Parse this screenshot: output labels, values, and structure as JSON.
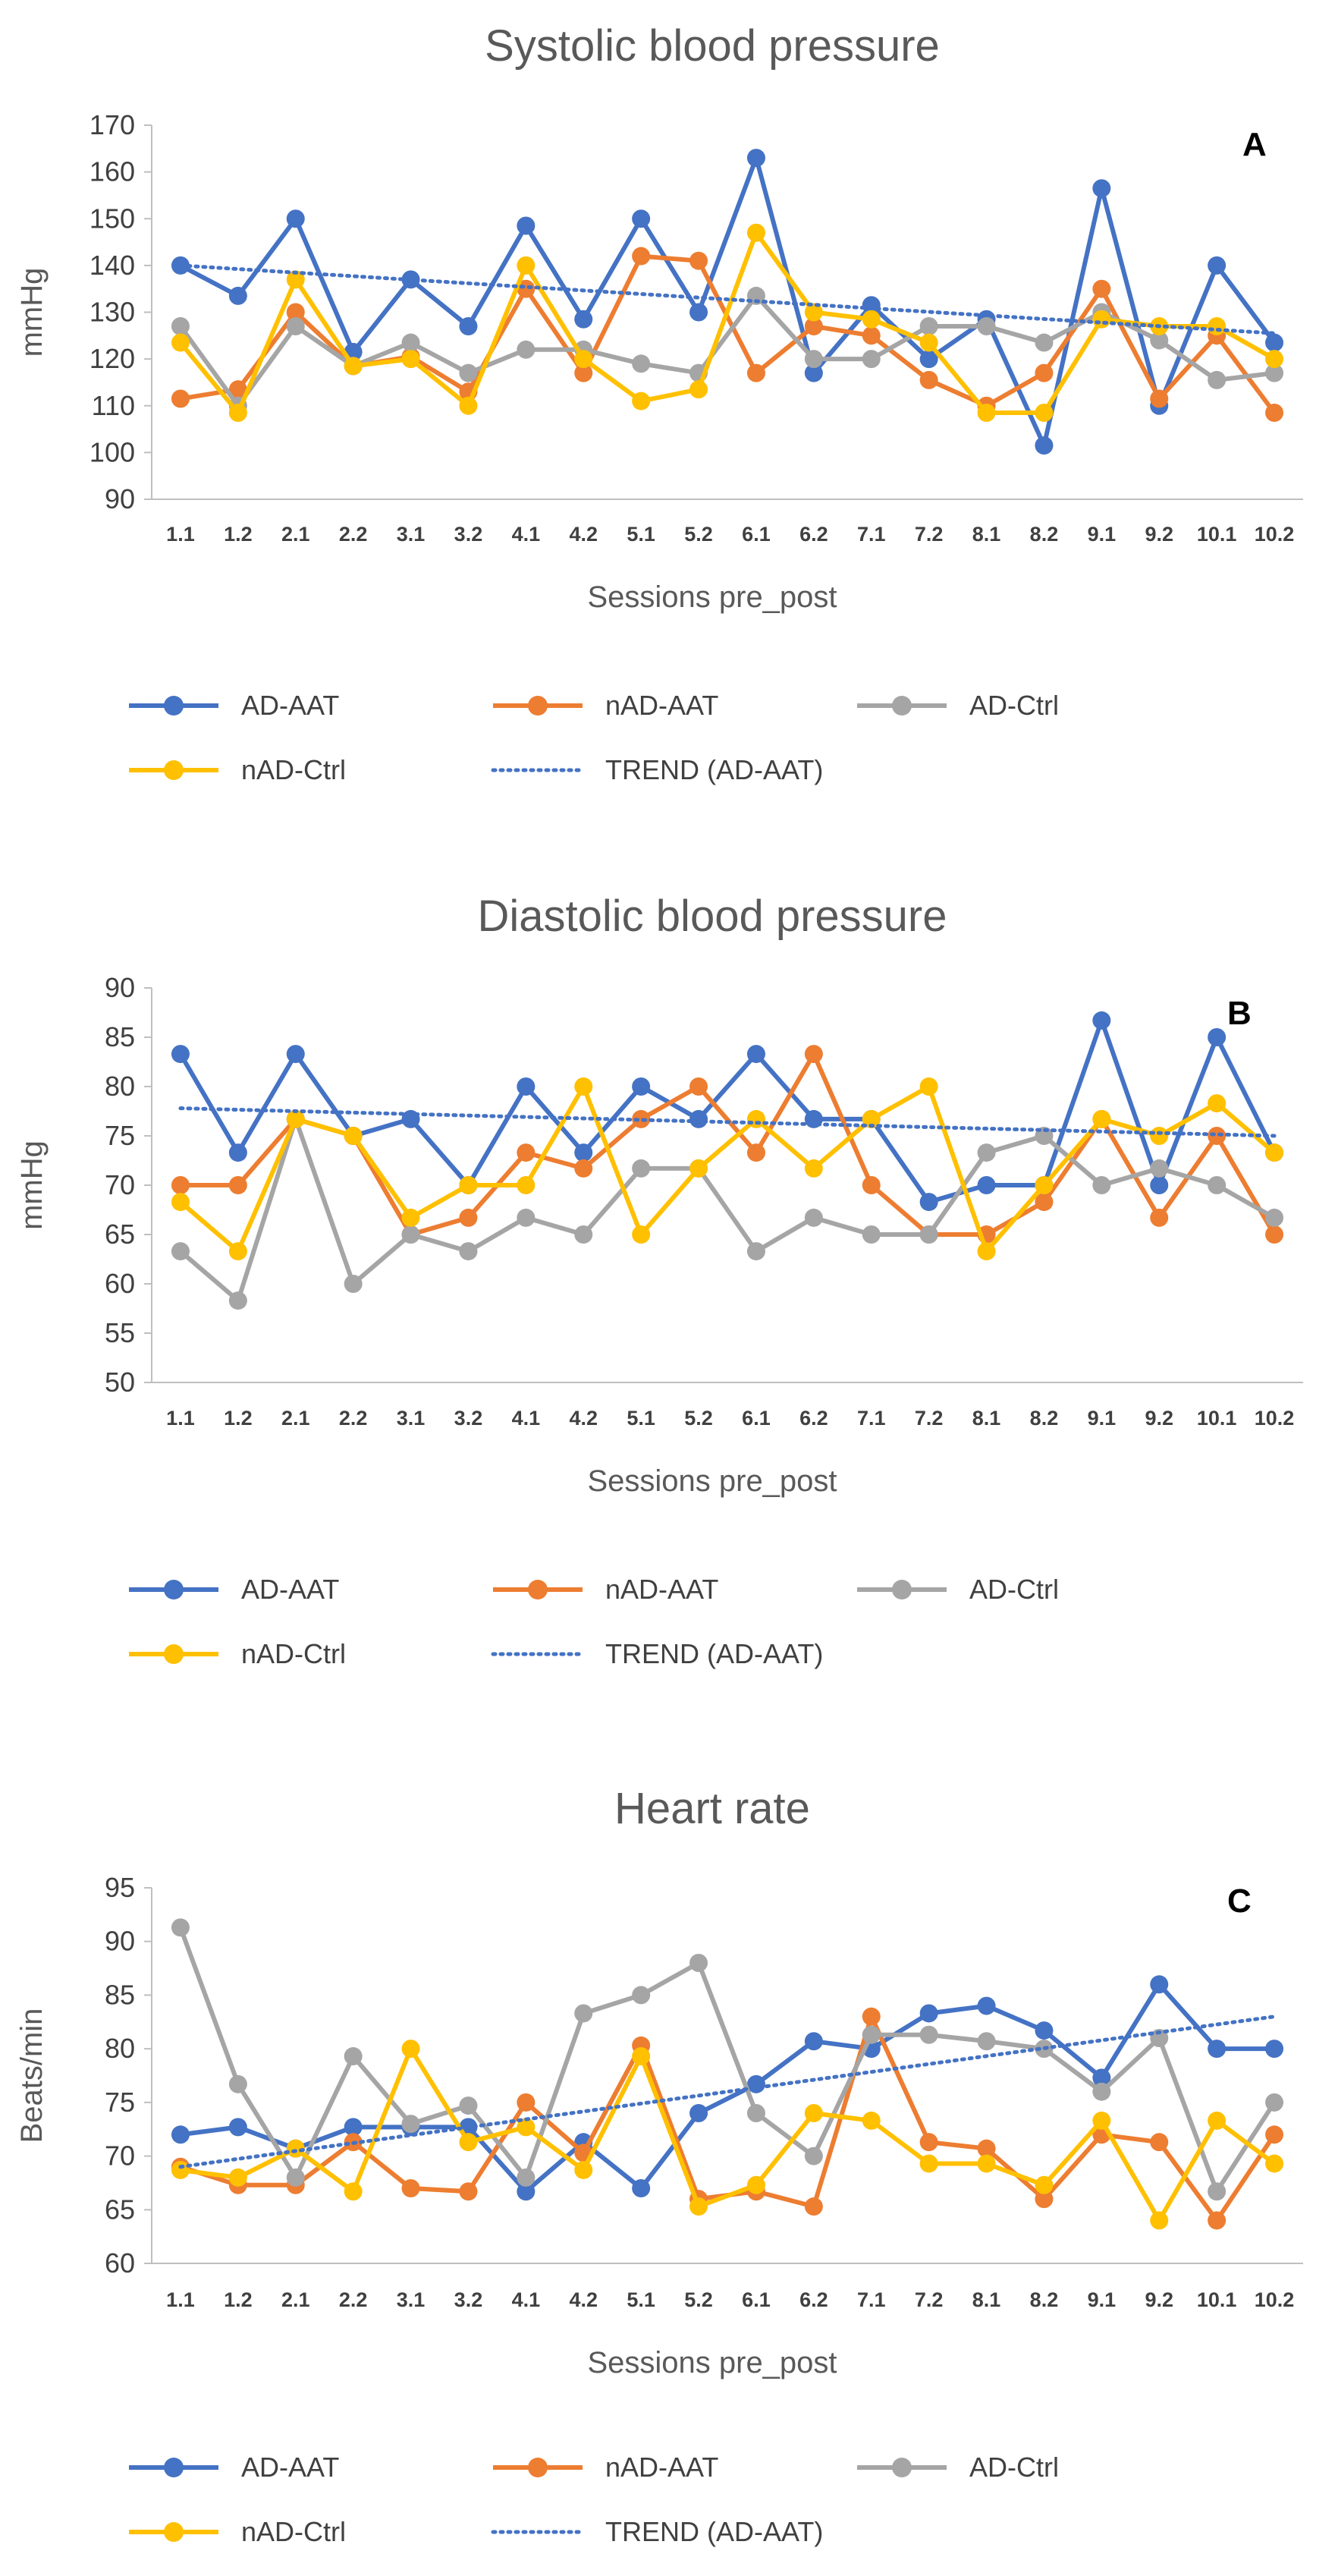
{
  "chart_data": [
    {
      "type": "line",
      "panel": "A",
      "title": "Systolic blood pressure",
      "xlabel": "Sessions pre_post",
      "ylabel": "mmHg",
      "ylim": [
        90,
        170
      ],
      "ystep": 10,
      "grid": false,
      "legend_position": "bottom",
      "categories": [
        "1.1",
        "1.2",
        "2.1",
        "2.2",
        "3.1",
        "3.2",
        "4.1",
        "4.2",
        "5.1",
        "5.2",
        "6.1",
        "6.2",
        "7.1",
        "7.2",
        "8.1",
        "8.2",
        "9.1",
        "9.2",
        "10.1",
        "10.2"
      ],
      "series": [
        {
          "name": "AD-AAT",
          "color": "#4472C4",
          "values": [
            140,
            133.5,
            150,
            121.5,
            137,
            127,
            148.5,
            128.5,
            150,
            130,
            163,
            117,
            131.5,
            120,
            128.5,
            101.5,
            156.5,
            110,
            140,
            123.5
          ]
        },
        {
          "name": "nAD-AAT",
          "color": "#ED7D31",
          "values": [
            111.5,
            113.5,
            130,
            118.5,
            120.5,
            113,
            135,
            117,
            142,
            141,
            117,
            127,
            125,
            115.5,
            110,
            117,
            135,
            111.5,
            125,
            108.5
          ]
        },
        {
          "name": "AD-Ctrl",
          "color": "#A5A5A5",
          "values": [
            127,
            110,
            127,
            118.5,
            123.5,
            117,
            122,
            122,
            119,
            117,
            133.5,
            120,
            120,
            127,
            127,
            123.5,
            130,
            124,
            115.5,
            117
          ]
        },
        {
          "name": "nAD-Ctrl",
          "color": "#FFC000",
          "values": [
            123.5,
            108.5,
            137,
            118.5,
            120,
            110,
            140,
            120,
            111,
            113.5,
            147,
            130,
            128.5,
            123.5,
            108.5,
            108.5,
            128.5,
            127,
            127,
            120
          ]
        }
      ],
      "trend": {
        "name": "TREND (AD-AAT)",
        "color": "#4472C4",
        "start": 140,
        "end": 125.5
      }
    },
    {
      "type": "line",
      "panel": "B",
      "title": "Diastolic blood pressure",
      "xlabel": "Sessions pre_post",
      "ylabel": "mmHg",
      "ylim": [
        50,
        90
      ],
      "ystep": 5,
      "grid": false,
      "legend_position": "bottom",
      "categories": [
        "1.1",
        "1.2",
        "2.1",
        "2.2",
        "3.1",
        "3.2",
        "4.1",
        "4.2",
        "5.1",
        "5.2",
        "6.1",
        "6.2",
        "7.1",
        "7.2",
        "8.1",
        "8.2",
        "9.1",
        "9.2",
        "10.1",
        "10.2"
      ],
      "series": [
        {
          "name": "AD-AAT",
          "color": "#4472C4",
          "values": [
            83.3,
            73.3,
            83.3,
            75,
            76.7,
            70,
            80,
            73.3,
            80,
            76.7,
            83.3,
            76.7,
            76.7,
            68.3,
            70,
            70,
            86.7,
            70,
            85,
            73.3
          ]
        },
        {
          "name": "nAD-AAT",
          "color": "#ED7D31",
          "values": [
            70,
            70,
            76.7,
            75,
            65,
            66.7,
            73.3,
            71.7,
            76.7,
            80,
            73.3,
            83.3,
            70,
            65,
            65,
            68.3,
            76.7,
            66.7,
            75,
            65
          ]
        },
        {
          "name": "AD-Ctrl",
          "color": "#A5A5A5",
          "values": [
            63.3,
            58.3,
            76.7,
            60,
            65,
            63.3,
            66.7,
            65,
            71.7,
            71.7,
            63.3,
            66.7,
            65,
            65,
            73.3,
            75,
            70,
            71.7,
            70,
            66.7
          ]
        },
        {
          "name": "nAD-Ctrl",
          "color": "#FFC000",
          "values": [
            68.3,
            63.3,
            76.7,
            75,
            66.7,
            70,
            70,
            80,
            65,
            71.7,
            76.7,
            71.7,
            76.7,
            80,
            63.3,
            70,
            76.7,
            75,
            78.3,
            73.3
          ]
        }
      ],
      "trend": {
        "name": "TREND (AD-AAT)",
        "color": "#4472C4",
        "start": 77.8,
        "end": 75
      }
    },
    {
      "type": "line",
      "panel": "C",
      "title": "Heart rate",
      "xlabel": "Sessions pre_post",
      "ylabel": "Beats/min",
      "ylim": [
        60,
        95
      ],
      "ystep": 5,
      "grid": false,
      "legend_position": "bottom",
      "categories": [
        "1.1",
        "1.2",
        "2.1",
        "2.2",
        "3.1",
        "3.2",
        "4.1",
        "4.2",
        "5.1",
        "5.2",
        "6.1",
        "6.2",
        "7.1",
        "7.2",
        "8.1",
        "8.2",
        "9.1",
        "9.2",
        "10.1",
        "10.2"
      ],
      "series": [
        {
          "name": "AD-AAT",
          "color": "#4472C4",
          "values": [
            72,
            72.7,
            70.7,
            72.7,
            72.7,
            72.7,
            66.7,
            71.3,
            67,
            74,
            76.7,
            80.7,
            80,
            83.3,
            84,
            81.7,
            77.3,
            86,
            80,
            80
          ]
        },
        {
          "name": "nAD-AAT",
          "color": "#ED7D31",
          "values": [
            69,
            67.3,
            67.3,
            71.3,
            67,
            66.7,
            75,
            70.3,
            80.3,
            66,
            66.7,
            65.3,
            83,
            71.3,
            70.7,
            66,
            72,
            71.3,
            64,
            72
          ]
        },
        {
          "name": "AD-Ctrl",
          "color": "#A5A5A5",
          "values": [
            91.3,
            76.7,
            68,
            79.3,
            73,
            74.7,
            68,
            83.3,
            85,
            88,
            74,
            70,
            81.3,
            81.3,
            80.7,
            80,
            76,
            81,
            66.7,
            75
          ]
        },
        {
          "name": "nAD-Ctrl",
          "color": "#FFC000",
          "values": [
            68.7,
            68,
            70.7,
            66.7,
            80,
            71.3,
            72.7,
            68.7,
            79.3,
            65.3,
            67.3,
            74,
            73.3,
            69.3,
            69.3,
            67.3,
            73.3,
            64,
            73.3,
            69.3
          ]
        }
      ],
      "trend": {
        "name": "TREND (AD-AAT)",
        "color": "#4472C4",
        "start": 69,
        "end": 83
      }
    }
  ]
}
